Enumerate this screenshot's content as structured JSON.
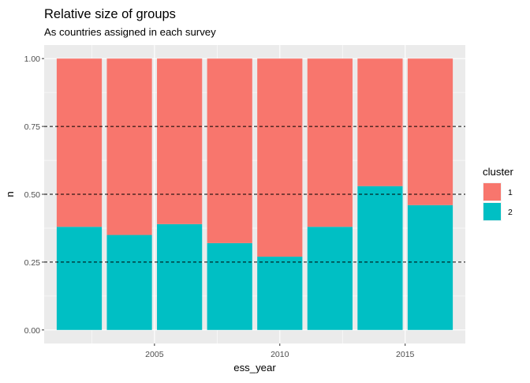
{
  "chart_data": {
    "type": "bar",
    "stacked": true,
    "title": "Relative size of groups",
    "subtitle": "As countries assigned in each survey",
    "xlabel": "ess_year",
    "ylabel": "n",
    "x": [
      2002,
      2004,
      2006,
      2008,
      2010,
      2012,
      2014,
      2016
    ],
    "xlim": [
      2000.6,
      2017.4
    ],
    "x_ticks": [
      2005,
      2010,
      2015
    ],
    "x_tick_labels": [
      "2005",
      "2010",
      "2015"
    ],
    "ylim": [
      -0.05,
      1.05
    ],
    "y_ticks": [
      0,
      0.25,
      0.5,
      0.75,
      1
    ],
    "y_tick_labels": [
      "0.00",
      "0.25",
      "0.50",
      "0.75",
      "1.00"
    ],
    "reference_lines": [
      0.25,
      0.5,
      0.75
    ],
    "legend_title": "cluster",
    "legend_position": "right",
    "series": [
      {
        "name": "2",
        "color": "#00BFC4",
        "values": [
          0.38,
          0.35,
          0.39,
          0.32,
          0.27,
          0.38,
          0.53,
          0.46
        ]
      },
      {
        "name": "1",
        "color": "#F8766D",
        "values": [
          0.62,
          0.65,
          0.61,
          0.68,
          0.73,
          0.62,
          0.47,
          0.54
        ]
      }
    ],
    "legend_order": [
      "1",
      "2"
    ],
    "grid": true,
    "panel_background": "#EBEBEB"
  }
}
